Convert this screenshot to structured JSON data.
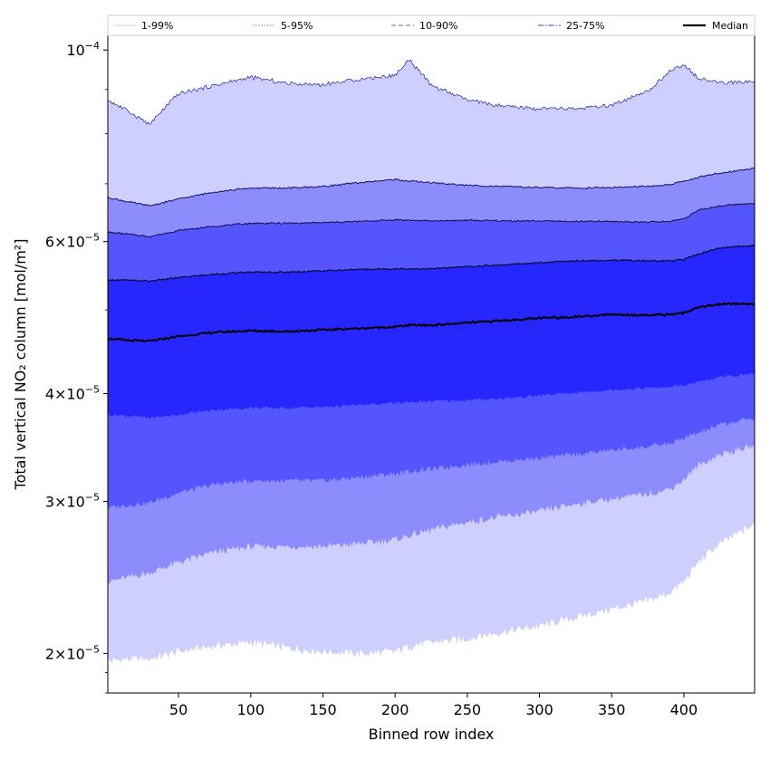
{
  "chart_data": {
    "type": "area",
    "title": "",
    "xlabel": "Binned row index",
    "ylabel": "Total vertical NO₂ column [mol/m²]",
    "yscale": "log",
    "xlim": [
      1,
      449
    ],
    "ylim": [
      1.8e-05,
      0.000104
    ],
    "xticks": [
      50,
      100,
      150,
      200,
      250,
      300,
      350,
      400
    ],
    "xtick_labels": [
      "50",
      "100",
      "150",
      "200",
      "250",
      "300",
      "350",
      "400"
    ],
    "yticks": [
      2e-05,
      3e-05,
      4e-05,
      6e-05,
      0.0001
    ],
    "ytick_labels": [
      {
        "mant": "2",
        "exp": "−5"
      },
      {
        "mant": "3",
        "exp": "−5"
      },
      {
        "mant": "4",
        "exp": "−5"
      },
      {
        "mant": "6",
        "exp": "−5"
      },
      {
        "mant": "",
        "exp": "−4"
      }
    ],
    "legend_position": "top",
    "legend": [
      {
        "label": "1-99%",
        "color": "#d8d8f8",
        "style": "solid"
      },
      {
        "label": "5-95%",
        "color": "#7a7acc",
        "style": "dotted"
      },
      {
        "label": "10-90%",
        "color": "#8a8ae8",
        "style": "dashed"
      },
      {
        "label": "25-75%",
        "color": "#5a5ae0",
        "style": "dashdot"
      },
      {
        "label": "Median",
        "color": "#000000",
        "style": "solid"
      }
    ],
    "x": [
      1,
      15,
      30,
      50,
      75,
      100,
      125,
      150,
      175,
      200,
      210,
      225,
      250,
      275,
      300,
      325,
      350,
      375,
      390,
      400,
      410,
      425,
      449
    ],
    "series": [
      {
        "name": "p1",
        "values": [
          1.96e-05,
          1.97e-05,
          1.97e-05,
          2.01e-05,
          2.04e-05,
          2.06e-05,
          2.03e-05,
          2.01e-05,
          2e-05,
          2.01e-05,
          2.04e-05,
          2.06e-05,
          2.08e-05,
          2.12e-05,
          2.15e-05,
          2.2e-05,
          2.25e-05,
          2.3e-05,
          2.35e-05,
          2.42e-05,
          2.55e-05,
          2.68e-05,
          2.82e-05
        ]
      },
      {
        "name": "p5",
        "values": [
          2.42e-05,
          2.45e-05,
          2.48e-05,
          2.55e-05,
          2.62e-05,
          2.66e-05,
          2.66e-05,
          2.66e-05,
          2.68e-05,
          2.71e-05,
          2.74e-05,
          2.78e-05,
          2.84e-05,
          2.88e-05,
          2.92e-05,
          2.98e-05,
          3.02e-05,
          3.06e-05,
          3.1e-05,
          3.18e-05,
          3.3e-05,
          3.4e-05,
          3.48e-05
        ]
      },
      {
        "name": "p10",
        "values": [
          2.95e-05,
          2.97e-05,
          2.99e-05,
          3.07e-05,
          3.14e-05,
          3.17e-05,
          3.17e-05,
          3.17e-05,
          3.2e-05,
          3.23e-05,
          3.25e-05,
          3.27e-05,
          3.31e-05,
          3.34e-05,
          3.37e-05,
          3.4e-05,
          3.44e-05,
          3.47e-05,
          3.5e-05,
          3.55e-05,
          3.6e-05,
          3.68e-05,
          3.75e-05
        ]
      },
      {
        "name": "p25",
        "values": [
          3.78e-05,
          3.77e-05,
          3.75e-05,
          3.78e-05,
          3.83e-05,
          3.85e-05,
          3.85e-05,
          3.86e-05,
          3.88e-05,
          3.9e-05,
          3.91e-05,
          3.92e-05,
          3.93e-05,
          3.95e-05,
          3.98e-05,
          4.01e-05,
          4.04e-05,
          4.06e-05,
          4.07e-05,
          4.09e-05,
          4.12e-05,
          4.18e-05,
          4.22e-05
        ]
      },
      {
        "name": "Median",
        "values": [
          4.63e-05,
          4.61e-05,
          4.6e-05,
          4.66e-05,
          4.71e-05,
          4.73e-05,
          4.72e-05,
          4.74e-05,
          4.76e-05,
          4.78e-05,
          4.8e-05,
          4.8e-05,
          4.83e-05,
          4.86e-05,
          4.89e-05,
          4.91e-05,
          4.94e-05,
          4.93e-05,
          4.94e-05,
          4.96e-05,
          5.03e-05,
          5.08e-05,
          5.08e-05
        ]
      },
      {
        "name": "p75",
        "values": [
          5.42e-05,
          5.41e-05,
          5.4e-05,
          5.45e-05,
          5.5e-05,
          5.53e-05,
          5.53e-05,
          5.55e-05,
          5.57e-05,
          5.58e-05,
          5.58e-05,
          5.58e-05,
          5.61e-05,
          5.64e-05,
          5.67e-05,
          5.7e-05,
          5.71e-05,
          5.7e-05,
          5.7e-05,
          5.72e-05,
          5.8e-05,
          5.9e-05,
          5.94e-05
        ]
      },
      {
        "name": "p90",
        "values": [
          6.15e-05,
          6.12e-05,
          6.08e-05,
          6.18e-05,
          6.25e-05,
          6.3e-05,
          6.3e-05,
          6.31e-05,
          6.33e-05,
          6.36e-05,
          6.35e-05,
          6.34e-05,
          6.35e-05,
          6.34e-05,
          6.34e-05,
          6.33e-05,
          6.33e-05,
          6.32e-05,
          6.33e-05,
          6.38e-05,
          6.52e-05,
          6.6e-05,
          6.65e-05
        ]
      },
      {
        "name": "p95",
        "values": [
          6.75e-05,
          6.67e-05,
          6.6e-05,
          6.72e-05,
          6.85e-05,
          6.92e-05,
          6.92e-05,
          6.95e-05,
          7.02e-05,
          7.08e-05,
          7.05e-05,
          7.02e-05,
          6.97e-05,
          6.95e-05,
          6.93e-05,
          6.92e-05,
          6.93e-05,
          6.95e-05,
          6.98e-05,
          7.05e-05,
          7.12e-05,
          7.2e-05,
          7.3e-05
        ]
      },
      {
        "name": "p99",
        "values": [
          8.75e-05,
          8.5e-05,
          8.2e-05,
          8.9e-05,
          9.1e-05,
          9.3e-05,
          9.15e-05,
          9.12e-05,
          9.25e-05,
          9.35e-05,
          9.75e-05,
          9.1e-05,
          8.75e-05,
          8.6e-05,
          8.55e-05,
          8.55e-05,
          8.62e-05,
          8.95e-05,
          9.45e-05,
          9.6e-05,
          9.3e-05,
          9.15e-05,
          9.2e-05
        ]
      }
    ],
    "bands": [
      {
        "lower": "p1",
        "upper": "p99",
        "color": "#ceceff"
      },
      {
        "lower": "p5",
        "upper": "p95",
        "color": "#8c8cff"
      },
      {
        "lower": "p10",
        "upper": "p90",
        "color": "#5555ff"
      },
      {
        "lower": "p25",
        "upper": "p75",
        "color": "#2626ff"
      }
    ]
  }
}
